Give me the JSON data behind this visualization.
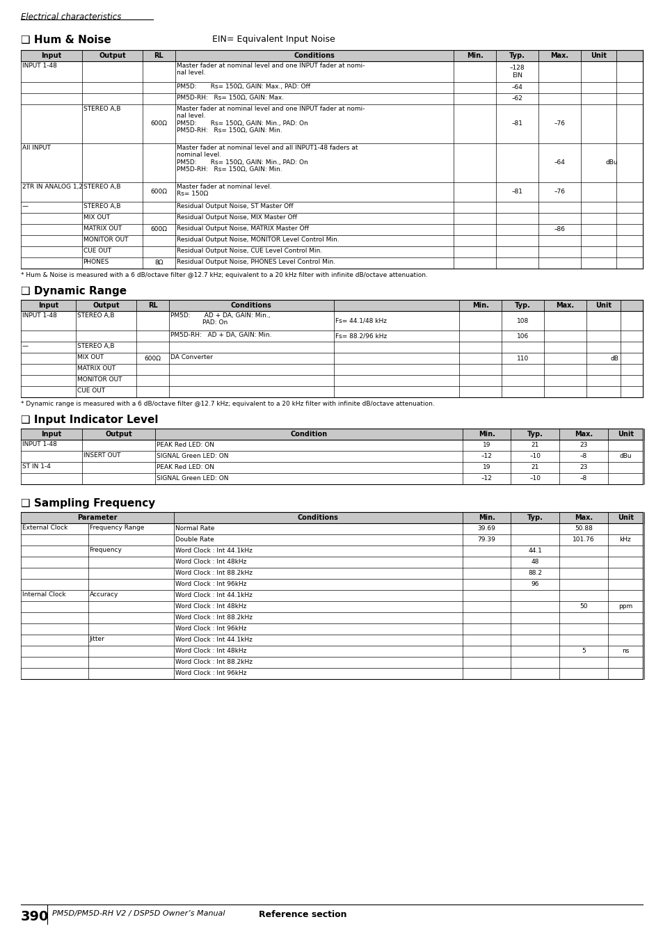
{
  "page_title": "Electrical characteristics",
  "footer_page": "390",
  "footer_text": "PM5D/PM5D-RH V2 / DSP5D Owner’s Manual",
  "footer_bold": "Reference section",
  "bg_color": "#ffffff"
}
